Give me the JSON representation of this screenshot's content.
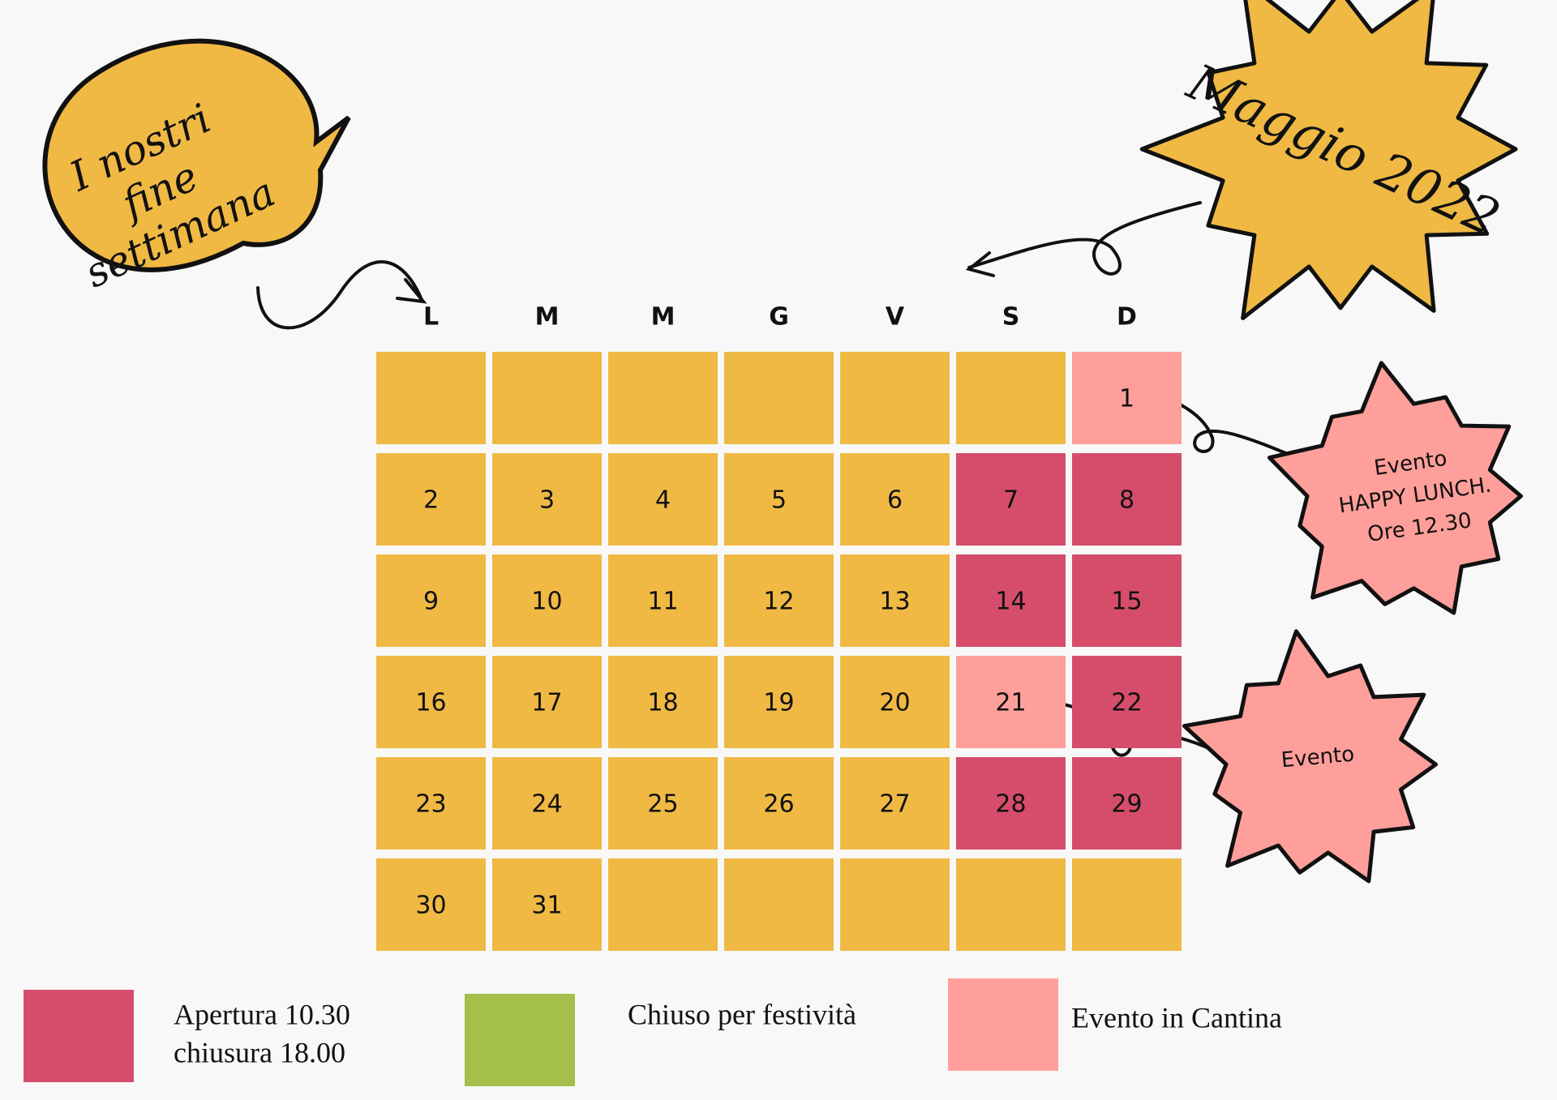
{
  "header": {
    "title": "Maggio 2022",
    "bubble_lines": [
      "I nostri",
      "fine",
      "settimana"
    ]
  },
  "calendar": {
    "weekdays": [
      "L",
      "M",
      "M",
      "G",
      "V",
      "S",
      "D"
    ],
    "rows": [
      [
        {
          "color": "#f0b944"
        },
        {
          "color": "#f0b944"
        },
        {
          "color": "#f0b944"
        },
        {
          "color": "#f0b944"
        },
        {
          "color": "#f0b944"
        },
        {
          "color": "#f0b944"
        },
        {
          "day": "1",
          "color": "#fe9f9b"
        }
      ],
      [
        {
          "day": "2",
          "color": "#f0b944"
        },
        {
          "day": "3",
          "color": "#f0b944"
        },
        {
          "day": "4",
          "color": "#f0b944"
        },
        {
          "day": "5",
          "color": "#f0b944"
        },
        {
          "day": "6",
          "color": "#f0b944"
        },
        {
          "day": "7",
          "color": "#d64d6b"
        },
        {
          "day": "8",
          "color": "#d64d6b"
        }
      ],
      [
        {
          "day": "9",
          "color": "#f0b944"
        },
        {
          "day": "10",
          "color": "#f0b944"
        },
        {
          "day": "11",
          "color": "#f0b944"
        },
        {
          "day": "12",
          "color": "#f0b944"
        },
        {
          "day": "13",
          "color": "#f0b944"
        },
        {
          "day": "14",
          "color": "#d64d6b"
        },
        {
          "day": "15",
          "color": "#d64d6b"
        }
      ],
      [
        {
          "day": "16",
          "color": "#f0b944"
        },
        {
          "day": "17",
          "color": "#f0b944"
        },
        {
          "day": "18",
          "color": "#f0b944"
        },
        {
          "day": "19",
          "color": "#f0b944"
        },
        {
          "day": "20",
          "color": "#f0b944"
        },
        {
          "day": "21",
          "color": "#fe9f9b"
        },
        {
          "day": "22",
          "color": "#d64d6b"
        }
      ],
      [
        {
          "day": "23",
          "color": "#f0b944"
        },
        {
          "day": "24",
          "color": "#f0b944"
        },
        {
          "day": "25",
          "color": "#f0b944"
        },
        {
          "day": "26",
          "color": "#f0b944"
        },
        {
          "day": "27",
          "color": "#f0b944"
        },
        {
          "day": "28",
          "color": "#d64d6b"
        },
        {
          "day": "29",
          "color": "#d64d6b"
        }
      ],
      [
        {
          "day": "30",
          "color": "#f0b944"
        },
        {
          "day": "31",
          "color": "#f0b944"
        },
        {
          "color": "#f0b944"
        },
        {
          "color": "#f0b944"
        },
        {
          "color": "#f0b944"
        },
        {
          "color": "#f0b944"
        },
        {
          "color": "#f0b944"
        }
      ]
    ]
  },
  "events": [
    {
      "lines": [
        "Evento",
        "HAPPY LUNCH.",
        "Ore 12.30"
      ]
    },
    {
      "lines": [
        "Evento"
      ]
    }
  ],
  "legend": {
    "items": [
      {
        "lines": [
          "Apertura 10.30",
          "chiusura 18.00"
        ],
        "color": "#d64d6b"
      },
      {
        "lines": [
          "Chiuso per  festività"
        ],
        "color": "#a4c04a"
      },
      {
        "lines": [
          "Evento in Cantina"
        ],
        "color": "#fe9f9b"
      }
    ]
  }
}
